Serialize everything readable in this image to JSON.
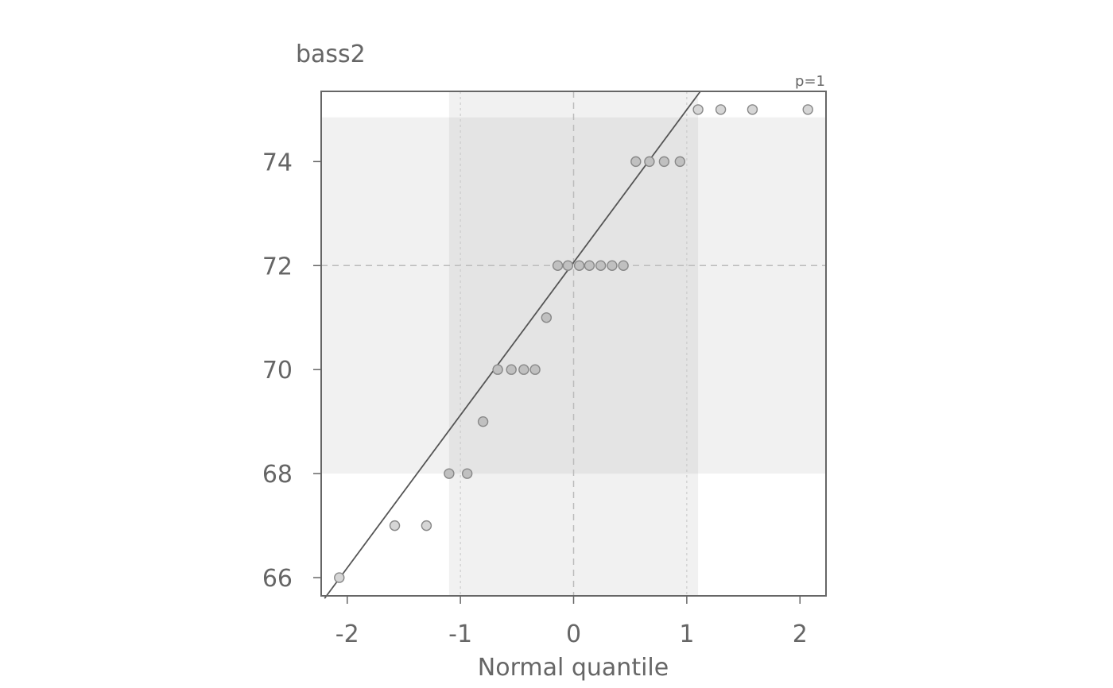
{
  "chart_data": {
    "type": "scatter",
    "subtype": "normal-qq",
    "title": "bass2",
    "xlabel": "Normal quantile",
    "ylabel": "",
    "annotation": "p=1",
    "xlim": [
      -2.23,
      2.23
    ],
    "ylim": [
      65.65,
      75.35
    ],
    "x_ticks": [
      -2,
      -1,
      0,
      1,
      2
    ],
    "y_ticks": [
      66,
      68,
      70,
      72,
      74
    ],
    "reference_lines": {
      "x": 0,
      "y": 72
    },
    "fit_line": {
      "x1": -2.2,
      "y1": 65.6,
      "x2": 1.12,
      "y2": 75.35
    },
    "bands": {
      "x_quartile_range": [
        -1.1,
        1.1
      ],
      "y_quartile_range": [
        68,
        74.85
      ]
    },
    "points": [
      {
        "x": -2.07,
        "y": 66
      },
      {
        "x": -1.58,
        "y": 67
      },
      {
        "x": -1.3,
        "y": 67
      },
      {
        "x": -1.1,
        "y": 68
      },
      {
        "x": -0.94,
        "y": 68
      },
      {
        "x": -0.8,
        "y": 69
      },
      {
        "x": -0.67,
        "y": 70
      },
      {
        "x": -0.55,
        "y": 70
      },
      {
        "x": -0.44,
        "y": 70
      },
      {
        "x": -0.34,
        "y": 70
      },
      {
        "x": -0.24,
        "y": 71
      },
      {
        "x": -0.14,
        "y": 72
      },
      {
        "x": -0.05,
        "y": 72
      },
      {
        "x": 0.05,
        "y": 72
      },
      {
        "x": 0.14,
        "y": 72
      },
      {
        "x": 0.24,
        "y": 72
      },
      {
        "x": 0.34,
        "y": 72
      },
      {
        "x": 0.44,
        "y": 72
      },
      {
        "x": 0.55,
        "y": 74
      },
      {
        "x": 0.67,
        "y": 74
      },
      {
        "x": 0.8,
        "y": 74
      },
      {
        "x": 0.94,
        "y": 74
      },
      {
        "x": 1.1,
        "y": 75
      },
      {
        "x": 1.3,
        "y": 75
      },
      {
        "x": 1.58,
        "y": 75
      },
      {
        "x": 2.07,
        "y": 75
      }
    ],
    "colors": {
      "text": "#666666",
      "frame": "#666666",
      "fit_line": "#555555",
      "band_light": "#f1f1f1",
      "band_dark": "#e4e4e4",
      "point_inner": "#c0c0c0",
      "point_outer": "#d6d6d6",
      "point_stroke": "#888888",
      "ref_line": "#bbbbbb"
    }
  }
}
